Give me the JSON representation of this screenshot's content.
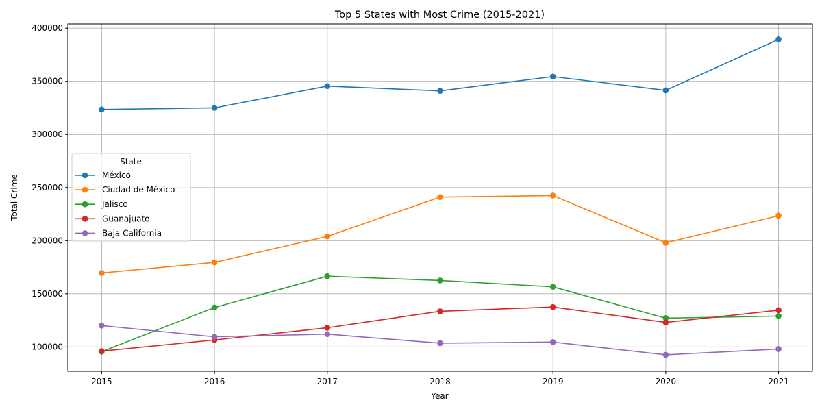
{
  "chart_data": {
    "type": "line",
    "title": "Top 5 States with Most Crime (2015-2021)",
    "xlabel": "Year",
    "ylabel": "Total Crime",
    "x": [
      2015,
      2016,
      2017,
      2018,
      2019,
      2020,
      2021
    ],
    "ylim": [
      77000,
      404000
    ],
    "xlim": [
      2014.7,
      2021.3
    ],
    "yticks": [
      100000,
      150000,
      200000,
      250000,
      300000,
      350000,
      400000
    ],
    "grid": true,
    "legend": {
      "title": "State",
      "placement": "center-left"
    },
    "series": [
      {
        "name": "México",
        "color": "#1f77b4",
        "values": [
          323500,
          325000,
          345500,
          341000,
          354500,
          341500,
          389500
        ]
      },
      {
        "name": "Ciudad de México",
        "color": "#ff7f0e",
        "values": [
          169500,
          179500,
          204000,
          241000,
          242500,
          198000,
          223500
        ]
      },
      {
        "name": "Jalisco",
        "color": "#2ca02c",
        "values": [
          95500,
          137000,
          166500,
          162500,
          156500,
          127000,
          129000
        ]
      },
      {
        "name": "Guanajuato",
        "color": "#d62728",
        "values": [
          96000,
          106500,
          118000,
          133500,
          137500,
          123000,
          134500
        ]
      },
      {
        "name": "Baja California",
        "color": "#9467bd",
        "values": [
          120000,
          109500,
          112000,
          103500,
          104500,
          92500,
          98000
        ]
      }
    ]
  }
}
